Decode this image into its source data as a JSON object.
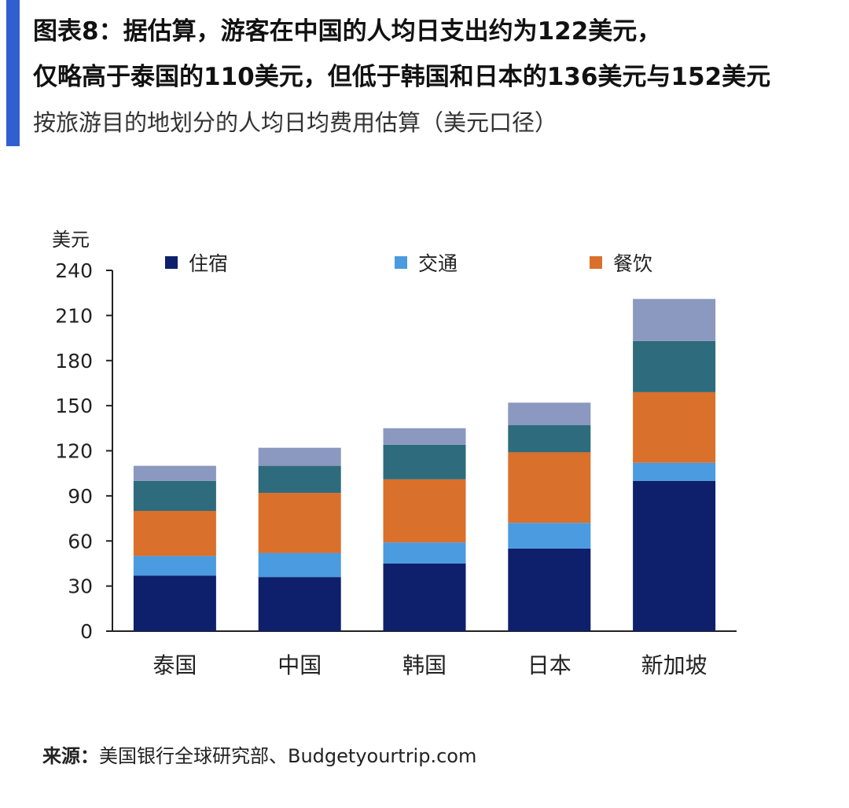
{
  "header": {
    "title_line1": "图表8：据估算，游客在中国的人均日支出约为122美元，",
    "title_line2": "仅略高于泰国的110美元，但低于韩国和日本的136美元与152美元",
    "subtitle": "按旅游目的地划分的人均日均费用估算（美元口径）"
  },
  "source": {
    "label": "来源：",
    "text": "美国银行全球研究部、Budgetyourtrip.com"
  },
  "chart_data": {
    "type": "bar",
    "stacked": true,
    "ylabel": "美元",
    "ylim": [
      0,
      240
    ],
    "yticks": [
      0,
      30,
      60,
      90,
      120,
      150,
      180,
      210,
      240
    ],
    "categories": [
      "泰国",
      "中国",
      "韩国",
      "日本",
      "新加坡"
    ],
    "series": [
      {
        "name": "住宿",
        "color": "#0e1f6b",
        "values": [
          37,
          36,
          45,
          55,
          100
        ]
      },
      {
        "name": "交通",
        "color": "#4a9be0",
        "values": [
          13,
          16,
          14,
          17,
          12
        ]
      },
      {
        "name": "餐饮",
        "color": "#d9702c",
        "values": [
          30,
          40,
          42,
          47,
          47
        ]
      },
      {
        "name": "",
        "color": "#2e6b7c",
        "values": [
          20,
          18,
          23,
          18,
          34
        ]
      },
      {
        "name": "",
        "color": "#8b98bf",
        "values": [
          10,
          12,
          11,
          15,
          28
        ]
      }
    ],
    "totals": [
      110,
      122,
      136,
      152,
      221
    ],
    "grid": false,
    "legend_position": "top"
  }
}
